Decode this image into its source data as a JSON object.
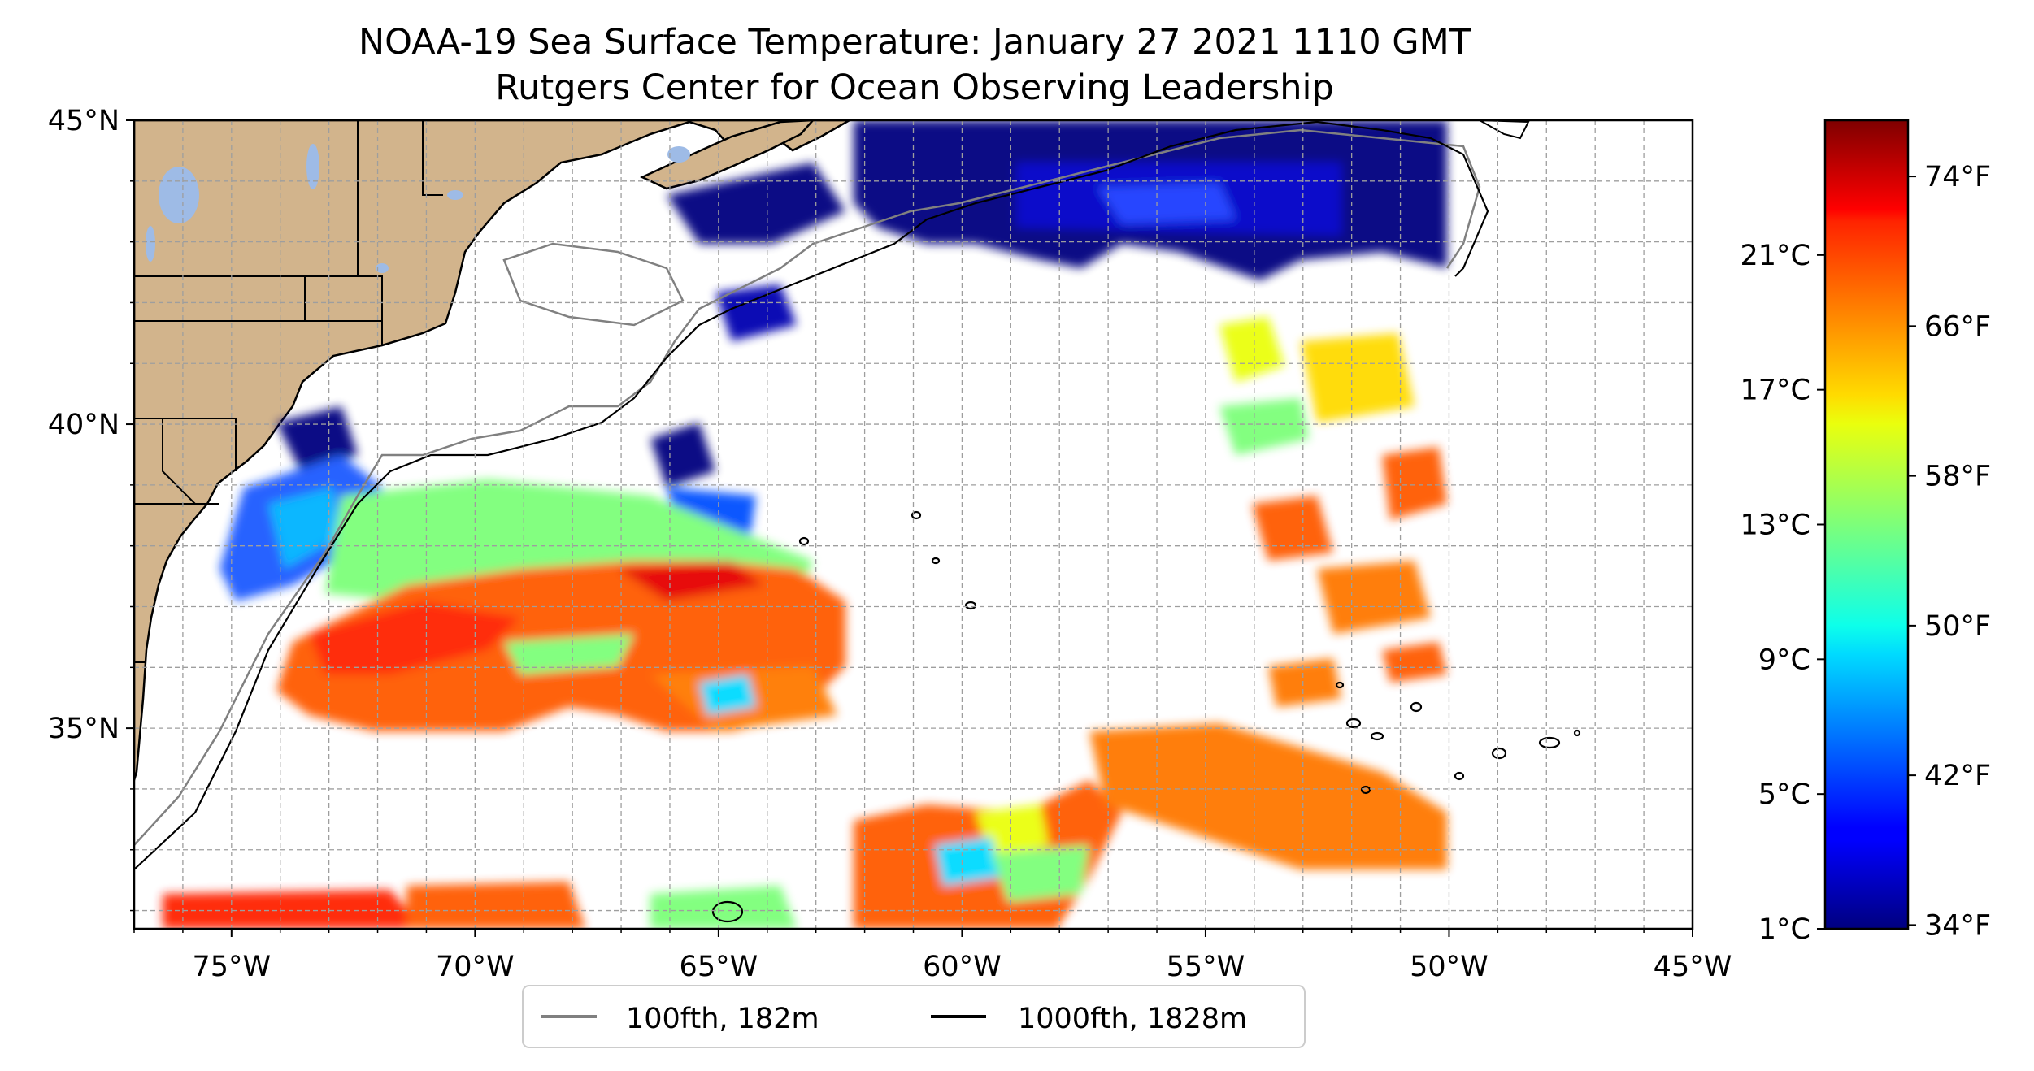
{
  "title": "NOAA-19 Sea Surface Temperature: January 27 2021 1110 GMT",
  "subtitle": "Rutgers Center for Ocean Observing Leadership",
  "map": {
    "lon_ticks": [
      {
        "value": -75,
        "label": "75°W"
      },
      {
        "value": -70,
        "label": "70°W"
      },
      {
        "value": -65,
        "label": "65°W"
      },
      {
        "value": -60,
        "label": "60°W"
      },
      {
        "value": -55,
        "label": "55°W"
      },
      {
        "value": -50,
        "label": "50°W"
      },
      {
        "value": -45,
        "label": "45°W"
      }
    ],
    "lat_ticks": [
      {
        "value": 45,
        "label": "45°N"
      },
      {
        "value": 40,
        "label": "40°N"
      },
      {
        "value": 35,
        "label": "35°N"
      }
    ],
    "lon_range": [
      -77,
      -45
    ],
    "lat_range": [
      31.7,
      45
    ],
    "gridlines": "dashed, every 1°",
    "land_color": "#d2b48c",
    "lake_color": "#9ebbe6",
    "ocean_color": "#ffffff"
  },
  "legend": {
    "placement": "bottom-center",
    "items": [
      {
        "label": "100fth, 182m",
        "color": "#808080"
      },
      {
        "label": "1000fth, 1828m",
        "color": "#000000"
      }
    ]
  },
  "colorbar": {
    "colormap": "jet",
    "range_f": [
      33.8,
      77
    ],
    "celsius_ticks": [
      {
        "value": 1,
        "label": "1°C"
      },
      {
        "value": 5,
        "label": "5°C"
      },
      {
        "value": 9,
        "label": "9°C"
      },
      {
        "value": 13,
        "label": "13°C"
      },
      {
        "value": 17,
        "label": "17°C"
      },
      {
        "value": 21,
        "label": "21°C"
      }
    ],
    "fahrenheit_ticks": [
      {
        "value": 34,
        "label": "34°F"
      },
      {
        "value": 42,
        "label": "42°F"
      },
      {
        "value": 50,
        "label": "50°F"
      },
      {
        "value": 58,
        "label": "58°F"
      },
      {
        "value": 66,
        "label": "66°F"
      },
      {
        "value": 74,
        "label": "74°F"
      }
    ]
  }
}
